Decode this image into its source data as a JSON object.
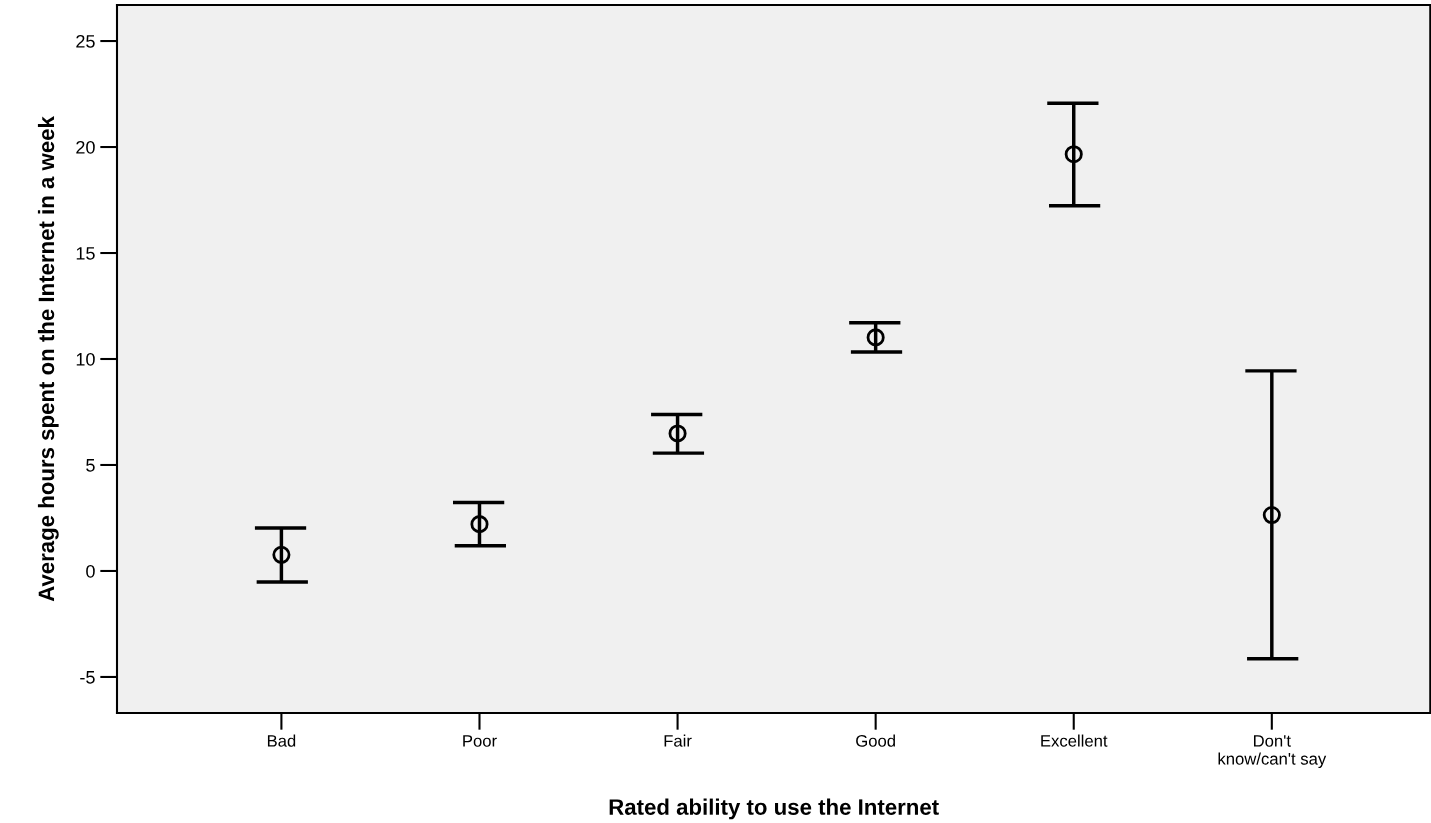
{
  "chart_data": {
    "type": "scatter",
    "xlabel": "Rated ability to use the Internet",
    "ylabel": "Average hours spent on the Internet in a week",
    "categories": [
      "Bad",
      "Poor",
      "Fair",
      "Good",
      "Excellent",
      "Don't\nknow/can't say"
    ],
    "values": [
      0.76,
      2.21,
      6.49,
      11.02,
      19.66,
      2.64
    ],
    "errors": [
      [
        -0.52,
        2.03
      ],
      [
        1.19,
        3.23
      ],
      [
        5.56,
        7.38
      ],
      [
        10.33,
        11.71
      ],
      [
        17.23,
        22.06
      ],
      [
        -4.14,
        9.44
      ]
    ],
    "color": "#000000",
    "marker": "circle",
    "ylim": [
      -6.7,
      26.7
    ],
    "yticks": [
      -5,
      0,
      5,
      10,
      15,
      20,
      25
    ],
    "grid": false,
    "legend": false
  }
}
